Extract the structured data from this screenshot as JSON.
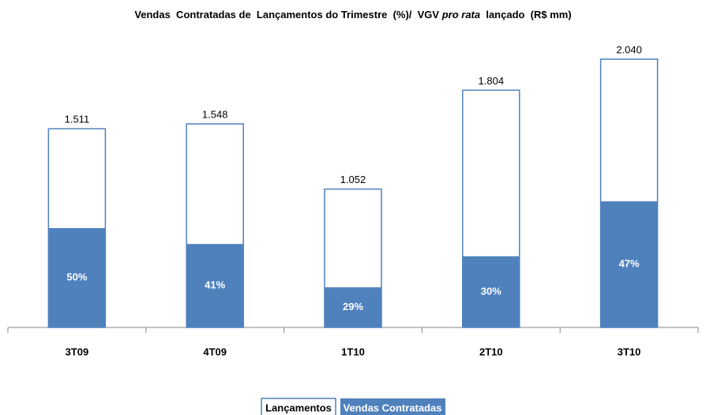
{
  "chart_data": {
    "type": "bar",
    "title": [
      "Vendas  Contratadas de  Lançamentos do Trimestre  (%)/  VGV ",
      "pro rata",
      "  lançado  (R$ mm)"
    ],
    "categories": [
      "3T09",
      "4T09",
      "1T10",
      "2T10",
      "3T10"
    ],
    "series": [
      {
        "name": "Lançamentos",
        "color": "#4f81bd",
        "values": [
          1511,
          1548,
          1052,
          1804,
          2040
        ],
        "value_labels": [
          "1.511",
          "1.548",
          "1.052",
          "1.804",
          "2.040"
        ]
      },
      {
        "name": "Vendas Contratadas",
        "color": "#4f81bd",
        "values": [
          50,
          41,
          29,
          30,
          47
        ],
        "value_labels": [
          "50%",
          "41%",
          "29%",
          "30%",
          "47%"
        ]
      }
    ]
  }
}
